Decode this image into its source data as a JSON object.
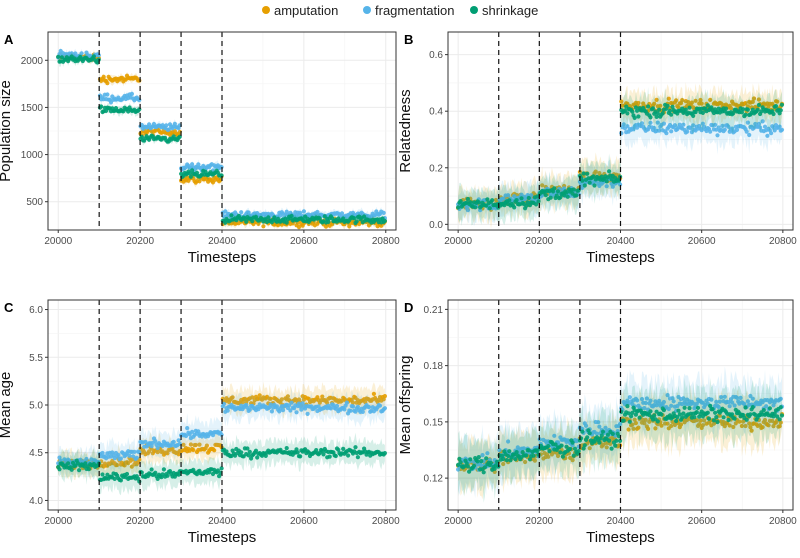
{
  "legend": {
    "items": [
      {
        "label": "amputation",
        "color": "#E69F00"
      },
      {
        "label": "fragmentation",
        "color": "#56B4E9"
      },
      {
        "label": "shrinkage",
        "color": "#009E73"
      }
    ]
  },
  "chart_data": [
    {
      "type": "scatter",
      "panel": "A",
      "xlabel": "Timesteps",
      "ylabel": "Population size",
      "xlim": [
        19975,
        20825
      ],
      "ylim": [
        200,
        2300
      ],
      "xticks": [
        20000,
        20200,
        20400,
        20600,
        20800
      ],
      "yticks": [
        500,
        1000,
        1500,
        2000
      ],
      "vlines": [
        20100,
        20200,
        20300,
        20400
      ],
      "noise": 55,
      "band": 40,
      "series": [
        {
          "name": "amputation",
          "color": "#E69F00",
          "segments": [
            2030,
            1800,
            1240,
            740,
            280
          ]
        },
        {
          "name": "fragmentation",
          "color": "#56B4E9",
          "segments": [
            2050,
            1600,
            1290,
            870,
            360
          ]
        },
        {
          "name": "shrinkage",
          "color": "#009E73",
          "segments": [
            2010,
            1470,
            1160,
            790,
            310
          ]
        }
      ]
    },
    {
      "type": "scatter",
      "panel": "B",
      "xlabel": "Timesteps",
      "ylabel": "Relatedness",
      "xlim": [
        19975,
        20825
      ],
      "ylim": [
        -0.02,
        0.68
      ],
      "xticks": [
        20000,
        20200,
        20400,
        20600,
        20800
      ],
      "yticks": [
        0.0,
        0.2,
        0.4,
        0.6
      ],
      "vlines": [
        20100,
        20200,
        20300,
        20400
      ],
      "noise": 0.03,
      "band": 0.05,
      "series": [
        {
          "name": "amputation",
          "color": "#E69F00",
          "segments": [
            0.07,
            0.09,
            0.12,
            0.17,
            0.42
          ]
        },
        {
          "name": "fragmentation",
          "color": "#56B4E9",
          "segments": [
            0.07,
            0.09,
            0.11,
            0.15,
            0.34
          ]
        },
        {
          "name": "shrinkage",
          "color": "#009E73",
          "segments": [
            0.07,
            0.08,
            0.11,
            0.16,
            0.4
          ]
        }
      ]
    },
    {
      "type": "scatter",
      "panel": "C",
      "xlabel": "Timesteps",
      "ylabel": "Mean age",
      "xlim": [
        19975,
        20825
      ],
      "ylim": [
        3.9,
        6.1
      ],
      "xticks": [
        20000,
        20200,
        20400,
        20600,
        20800
      ],
      "yticks": [
        4.0,
        4.5,
        5.0,
        5.5,
        6.0
      ],
      "vlines": [
        20100,
        20200,
        20300,
        20400
      ],
      "noise": 0.07,
      "band": 0.12,
      "series": [
        {
          "name": "amputation",
          "color": "#E69F00",
          "segments": [
            4.38,
            4.4,
            4.52,
            4.55,
            5.05
          ]
        },
        {
          "name": "fragmentation",
          "color": "#56B4E9",
          "segments": [
            4.4,
            4.47,
            4.6,
            4.7,
            4.97
          ]
        },
        {
          "name": "shrinkage",
          "color": "#009E73",
          "segments": [
            4.36,
            4.25,
            4.27,
            4.3,
            4.5
          ]
        }
      ]
    },
    {
      "type": "scatter",
      "panel": "D",
      "xlabel": "Timesteps",
      "ylabel": "Mean offspring",
      "xlim": [
        19975,
        20825
      ],
      "ylim": [
        0.103,
        0.215
      ],
      "xticks": [
        20000,
        20200,
        20400,
        20600,
        20800
      ],
      "yticks": [
        0.12,
        0.15,
        0.18,
        0.21
      ],
      "vlines": [
        20100,
        20200,
        20300,
        20400
      ],
      "noise": 0.006,
      "band": 0.012,
      "series": [
        {
          "name": "amputation",
          "color": "#E69F00",
          "segments": [
            0.127,
            0.131,
            0.134,
            0.139,
            0.15
          ]
        },
        {
          "name": "fragmentation",
          "color": "#56B4E9",
          "segments": [
            0.128,
            0.134,
            0.139,
            0.146,
            0.16
          ]
        },
        {
          "name": "shrinkage",
          "color": "#009E73",
          "segments": [
            0.127,
            0.132,
            0.136,
            0.141,
            0.154
          ]
        }
      ]
    }
  ]
}
